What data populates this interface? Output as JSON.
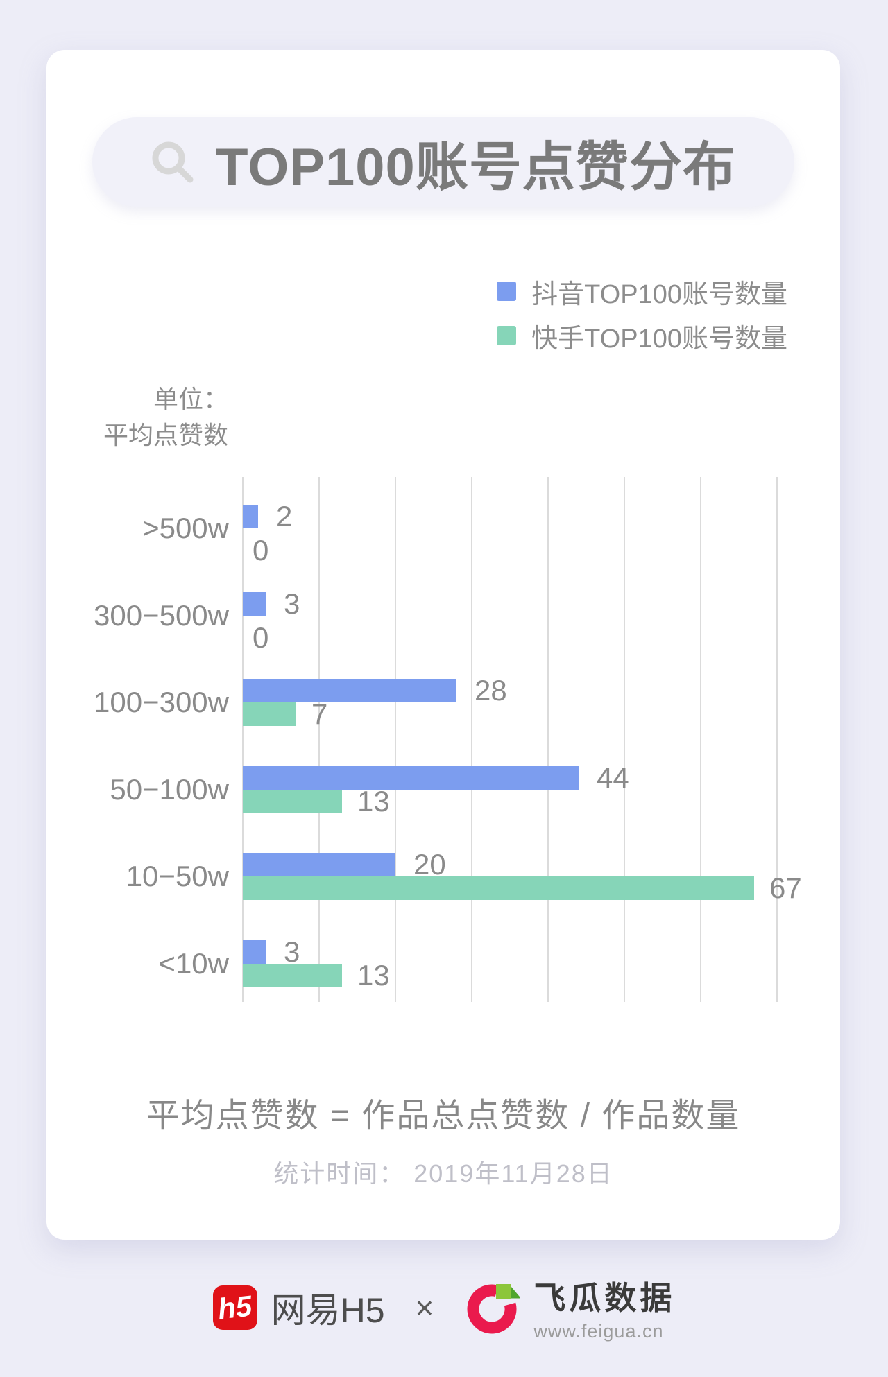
{
  "title": {
    "text": "TOP100账号点赞分布"
  },
  "legend": [
    {
      "label": "抖音TOP100账号数量",
      "color": "#7C9DEF"
    },
    {
      "label": "快手TOP100账号数量",
      "color": "#86D5B8"
    }
  ],
  "unit_label": {
    "line1": "单位：",
    "line2": "平均点赞数"
  },
  "chart_data": {
    "type": "bar",
    "orientation": "horizontal",
    "title": "TOP100账号点赞分布",
    "unit": "平均点赞数",
    "categories": [
      ">500w",
      "300−500w",
      "100−300w",
      "50−100w",
      "10−50w",
      "<10w"
    ],
    "series": [
      {
        "name": "抖音TOP100账号数量",
        "color": "#7C9DEF",
        "values": [
          2,
          3,
          28,
          44,
          20,
          3
        ]
      },
      {
        "name": "快手TOP100账号数量",
        "color": "#86D5B8",
        "values": [
          0,
          0,
          7,
          13,
          67,
          13
        ]
      }
    ],
    "xlim": [
      0,
      70
    ],
    "gridline_interval": 10,
    "grid": true,
    "legend_position": "top-right",
    "value_labels": true,
    "gridline_color": "#DBDBDB"
  },
  "formula": "平均点赞数 = 作品总点赞数 / 作品数量",
  "stat_time": "统计时间： 2019年11月28日",
  "footer": {
    "h5_logo_text": "h5",
    "wangyi_label": "网易H5",
    "separator": "×",
    "feigua_label": "飞瓜数据",
    "feigua_url": "www.feigua.cn"
  },
  "colors": {
    "page_background": "#EDEDF7",
    "card_background": "#FFFFFF",
    "pill_background": "#F1F1F9",
    "title_text": "#7A7A7A",
    "axis_text": "#8A8A8A",
    "gridline": "#DBDBDB",
    "douyin_blue": "#7C9DEF",
    "kuaishou_green": "#86D5B8",
    "h5_logo_red": "#E01218",
    "feigua_pink": "#EA1A4D",
    "feigua_green": "#8CC63B",
    "feigua_green_dark": "#4EA52A"
  }
}
